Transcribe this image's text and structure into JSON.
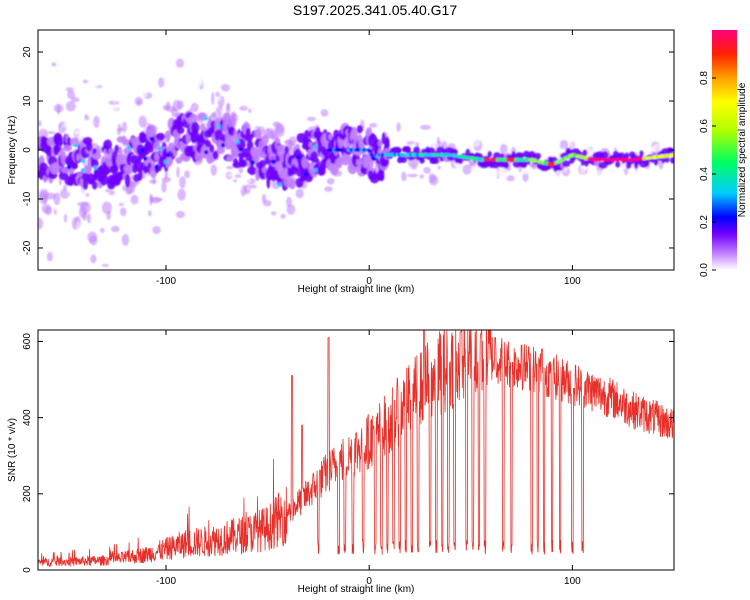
{
  "title": "S197.2025.341.05.40.G17",
  "chart_data": [
    {
      "type": "heatmap",
      "xlabel": "Height of straight line (km)",
      "ylabel": "Frequency (Hz)",
      "xlim": [
        -163,
        150
      ],
      "ylim": [
        -24.5,
        24.5
      ],
      "x_ticks": [
        -100,
        0,
        100
      ],
      "x_tick_labels": [
        "-100",
        "0",
        "100"
      ],
      "y_ticks": [
        -20,
        -10,
        0,
        10,
        20
      ],
      "y_tick_labels": [
        "-20",
        "-10",
        "0",
        "10",
        "20"
      ],
      "dominant_frequency_trace": {
        "x": [
          -150,
          -130,
          -110,
          -90,
          -70,
          -50,
          -40,
          -30,
          -20,
          -10,
          0,
          2,
          5,
          20,
          40,
          55,
          70,
          80,
          90,
          95,
          100,
          110,
          130,
          150
        ],
        "y": [
          -2,
          -3,
          -1,
          3,
          2,
          -2,
          -4,
          -1,
          0,
          0,
          0,
          -2,
          -1,
          -1,
          -1,
          -2,
          -2,
          -2,
          -3,
          -2,
          -1,
          -2,
          -2,
          -1
        ]
      },
      "colorbar": {
        "label": "Normalized spectral amplitude",
        "range": [
          0,
          1
        ],
        "ticks": [
          0.0,
          0.2,
          0.4,
          0.6,
          0.8
        ],
        "tick_labels": [
          "0.0",
          "0.2",
          "0.4",
          "0.6",
          "0.8"
        ]
      },
      "colormap": [
        "#ffffff",
        "#c080ff",
        "#7000ff",
        "#0000ff",
        "#00ccff",
        "#00ff60",
        "#b0ff00",
        "#ffff00",
        "#ffa000",
        "#ff2000",
        "#ff0080"
      ]
    },
    {
      "type": "line",
      "xlabel": "Height of straight line (km)",
      "ylabel": "SNR (10 * v/v)",
      "xlim": [
        -163,
        150
      ],
      "ylim": [
        0,
        630
      ],
      "x_ticks": [
        -100,
        0,
        100
      ],
      "x_tick_labels": [
        "-100",
        "0",
        "100"
      ],
      "y_ticks": [
        0,
        200,
        400,
        600
      ],
      "y_tick_labels": [
        "0",
        "200",
        "400",
        "600"
      ],
      "series": [
        {
          "name": "SNR",
          "color": "#e8302a",
          "baseline_envelope": {
            "x": [
              -163,
              -150,
              -130,
              -110,
              -100,
              -90,
              -80,
              -70,
              -60,
              -50,
              -40,
              -30,
              -20,
              -10,
              0,
              10,
              20,
              30,
              40,
              50,
              60,
              70,
              80,
              90,
              100,
              110,
              120,
              130,
              140,
              150
            ],
            "y": [
              20,
              22,
              25,
              40,
              55,
              70,
              75,
              85,
              95,
              110,
              150,
              200,
              260,
              300,
              340,
              390,
              450,
              500,
              540,
              560,
              560,
              540,
              530,
              510,
              490,
              470,
              450,
              420,
              400,
              380
            ]
          },
          "dropouts_x": [
            -25,
            -20,
            -15,
            -12,
            -8,
            -3,
            3,
            6,
            9,
            12,
            15,
            18,
            21,
            24,
            27,
            30,
            33,
            36,
            39,
            42,
            45,
            48,
            51,
            54,
            57,
            66,
            70,
            80,
            83,
            86,
            90,
            94,
            100,
            105
          ],
          "spikes": {
            "x": [
              -38,
              -33,
              -20,
              27,
              45,
              55,
              62,
              75,
              85
            ],
            "y": [
              510,
              380,
              610,
              630,
              625,
              620,
              610,
              590,
              580
            ]
          }
        }
      ]
    }
  ]
}
